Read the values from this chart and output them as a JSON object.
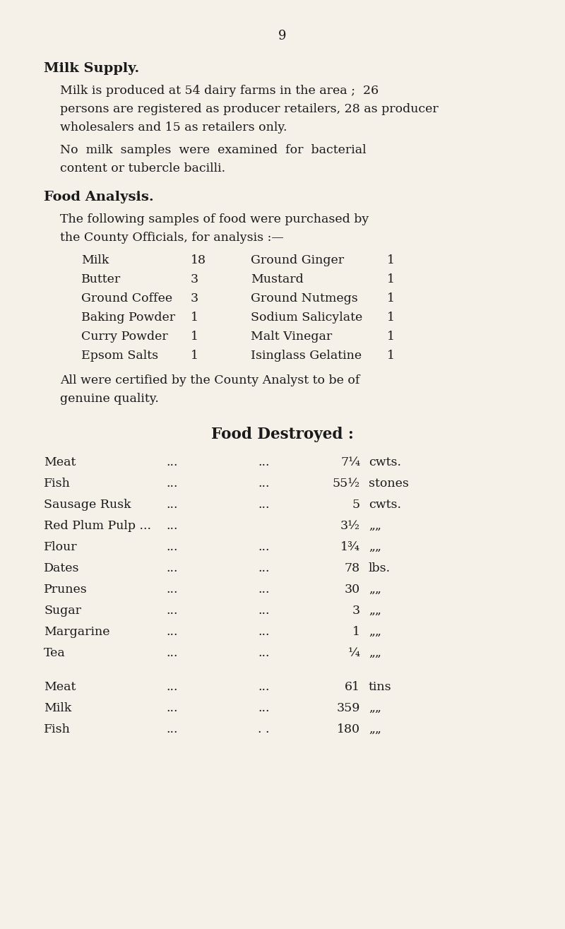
{
  "bg_color": "#f5f0e8",
  "text_color": "#1a1a1a",
  "page_number": "9",
  "title_milk": "Milk Supply.",
  "para1_lines": [
    "Milk is produced at 54 dairy farms in the area ;  26",
    "persons are registered as producer retailers, 28 as producer",
    "wholesalers and 15 as retailers only."
  ],
  "para2_lines": [
    "No  milk  samples  were  examined  for  bacterial",
    "content or tubercle bacilli."
  ],
  "title_food": "Food Analysis.",
  "para3_lines": [
    "The following samples of food were purchased by",
    "the County Officials, for analysis :—"
  ],
  "analysis_left": [
    [
      "Milk",
      "18"
    ],
    [
      "Butter",
      "3"
    ],
    [
      "Ground Coffee",
      "3"
    ],
    [
      "Baking Powder",
      "1"
    ],
    [
      "Curry Powder",
      "1"
    ],
    [
      "Epsom Salts",
      "1"
    ]
  ],
  "analysis_right": [
    [
      "Ground Ginger",
      "1"
    ],
    [
      "Mustard",
      "1"
    ],
    [
      "Ground Nutmegs",
      "1"
    ],
    [
      "Sodium Salicylate",
      "1"
    ],
    [
      "Malt Vinegar",
      "1"
    ],
    [
      "Isinglass Gelatine",
      "1"
    ]
  ],
  "para4_lines": [
    "All were certified by the County Analyst to be of",
    "genuine quality."
  ],
  "title_destroyed": "Food Destroyed :",
  "destroyed_rows": [
    [
      "Meat",
      "...",
      "...",
      "7¼",
      "cwts."
    ],
    [
      "Fish",
      "...",
      "...",
      "55½",
      "stones"
    ],
    [
      "Sausage Rusk",
      "...",
      "...",
      "5",
      "cwts."
    ],
    [
      "Red Plum Pulp ...",
      "...",
      "",
      "3½",
      "„„"
    ],
    [
      "Flour",
      "...",
      "...",
      "1¾",
      "„„"
    ],
    [
      "Dates",
      "...",
      "...",
      "78",
      "lbs."
    ],
    [
      "Prunes",
      "...",
      "...",
      "30",
      "„„"
    ],
    [
      "Sugar",
      "...",
      "...",
      "3",
      "„„"
    ],
    [
      "Margarine",
      "...",
      "...",
      "1",
      "„„"
    ],
    [
      "Tea",
      "...",
      "...",
      "¼",
      "„„"
    ]
  ],
  "destroyed_rows2": [
    [
      "Meat",
      "...",
      "...",
      "61",
      "tins"
    ],
    [
      "Milk",
      "...",
      "...",
      "359",
      "„„"
    ],
    [
      "Fish",
      "...",
      ". .",
      "180",
      "„„"
    ]
  ],
  "ditto": ",,"
}
